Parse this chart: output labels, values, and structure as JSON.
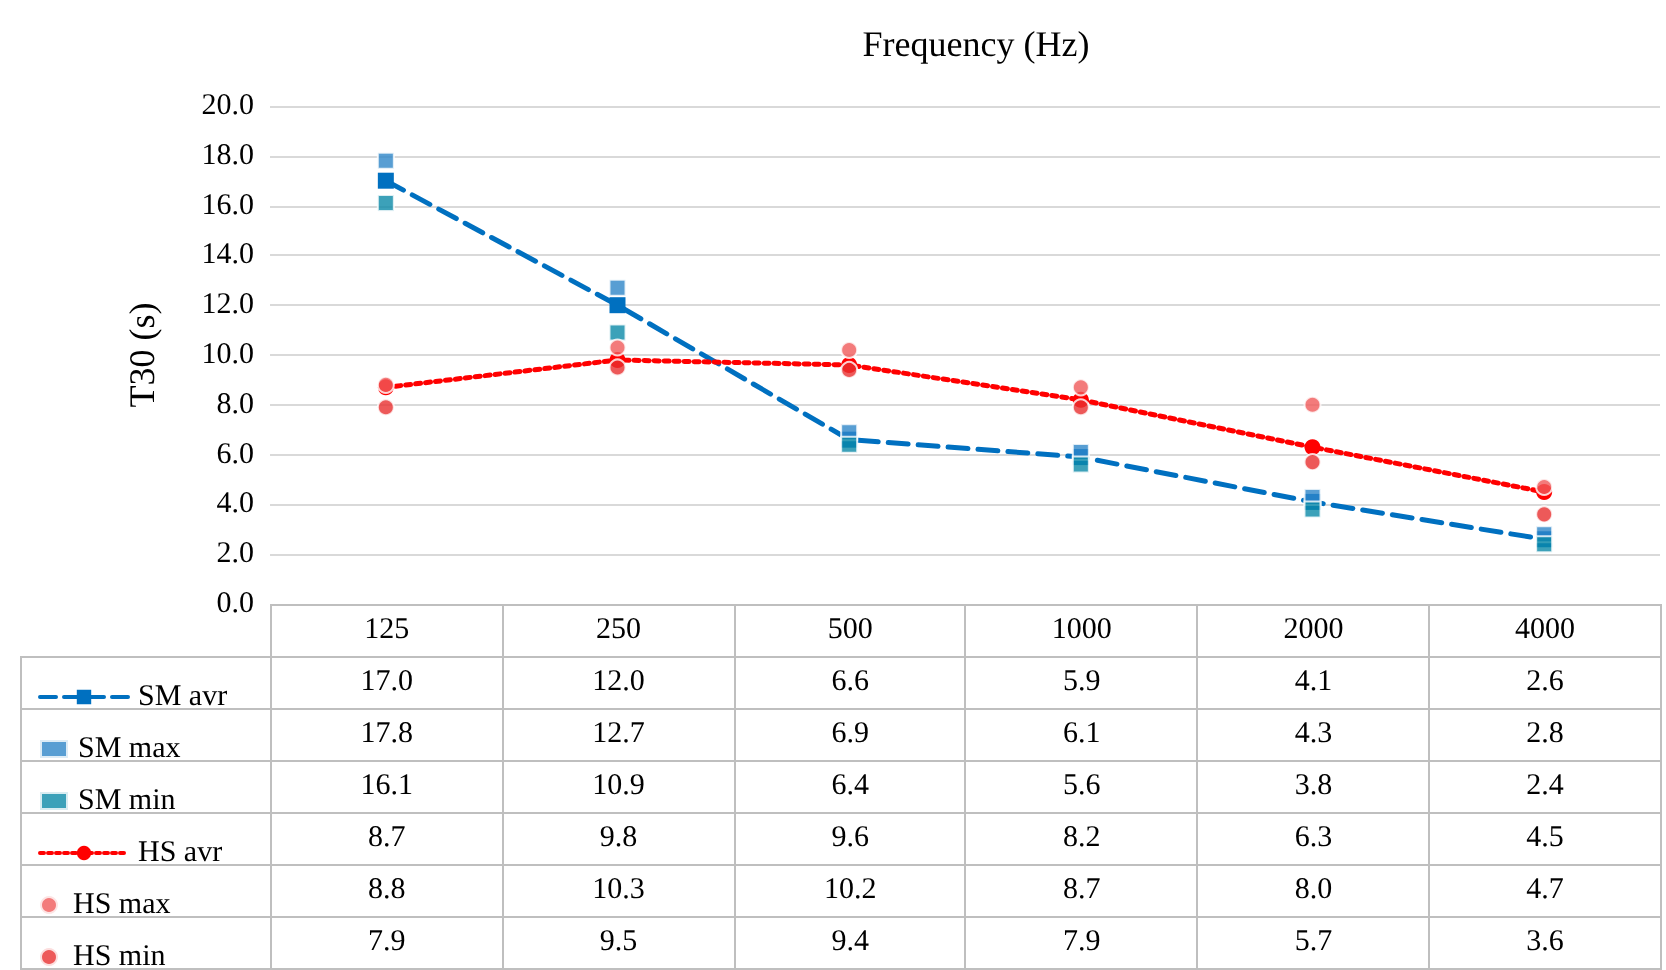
{
  "chart_data": {
    "type": "line",
    "xlabel": "Frequency (Hz)",
    "ylabel": "T30 (s)",
    "categories": [
      "125",
      "250",
      "500",
      "1000",
      "2000",
      "4000"
    ],
    "series": [
      {
        "name": "SM avr",
        "color": "#0070c0",
        "marker": "square",
        "line_style": "dashed",
        "values": [
          17.0,
          12.0,
          6.6,
          5.9,
          4.1,
          2.6
        ],
        "value_labels": [
          "17.0",
          "12.0",
          "6.6",
          "5.9",
          "4.1",
          "2.6"
        ]
      },
      {
        "name": "SM max",
        "type": "scatter",
        "color": "#2e86c8",
        "marker": "square",
        "values": [
          17.8,
          12.7,
          6.9,
          6.1,
          4.3,
          2.8
        ],
        "value_labels": [
          "17.8",
          "12.7",
          "6.9",
          "6.1",
          "4.3",
          "2.8"
        ]
      },
      {
        "name": "SM min",
        "type": "scatter",
        "color": "#0b8aa8",
        "marker": "square",
        "values": [
          16.1,
          10.9,
          6.4,
          5.6,
          3.8,
          2.4
        ],
        "value_labels": [
          "16.1",
          "10.9",
          "6.4",
          "5.6",
          "3.8",
          "2.4"
        ]
      },
      {
        "name": "HS avr",
        "color": "#ff0000",
        "marker": "circle",
        "line_style": "dotted",
        "values": [
          8.7,
          9.8,
          9.6,
          8.2,
          6.3,
          4.5
        ],
        "value_labels": [
          "8.7",
          "9.8",
          "9.6",
          "8.2",
          "6.3",
          "4.5"
        ]
      },
      {
        "name": "HS max",
        "type": "scatter",
        "color": "#f05a5a",
        "marker": "circle",
        "values": [
          8.8,
          10.3,
          10.2,
          8.7,
          8.0,
          4.7
        ],
        "value_labels": [
          "8.8",
          "10.3",
          "10.2",
          "8.7",
          "8.0",
          "4.7"
        ]
      },
      {
        "name": "HS min",
        "type": "scatter",
        "color": "#e83030",
        "marker": "circle",
        "values": [
          7.9,
          9.5,
          9.4,
          7.9,
          5.7,
          3.6
        ],
        "value_labels": [
          "7.9",
          "9.5",
          "9.4",
          "7.9",
          "5.7",
          "3.6"
        ]
      }
    ],
    "ylim": [
      0,
      20
    ],
    "yticks": [
      {
        "value": 0,
        "label": "0.0"
      },
      {
        "value": 2,
        "label": "2.0"
      },
      {
        "value": 4,
        "label": "4.0"
      },
      {
        "value": 6,
        "label": "6.0"
      },
      {
        "value": 8,
        "label": "8.0"
      },
      {
        "value": 10,
        "label": "10.0"
      },
      {
        "value": 12,
        "label": "12.0"
      },
      {
        "value": 14,
        "label": "14.0"
      },
      {
        "value": 16,
        "label": "16.0"
      },
      {
        "value": 18,
        "label": "18.0"
      },
      {
        "value": 20,
        "label": "20.0"
      }
    ],
    "grid": "y",
    "legend": "bottom left"
  }
}
